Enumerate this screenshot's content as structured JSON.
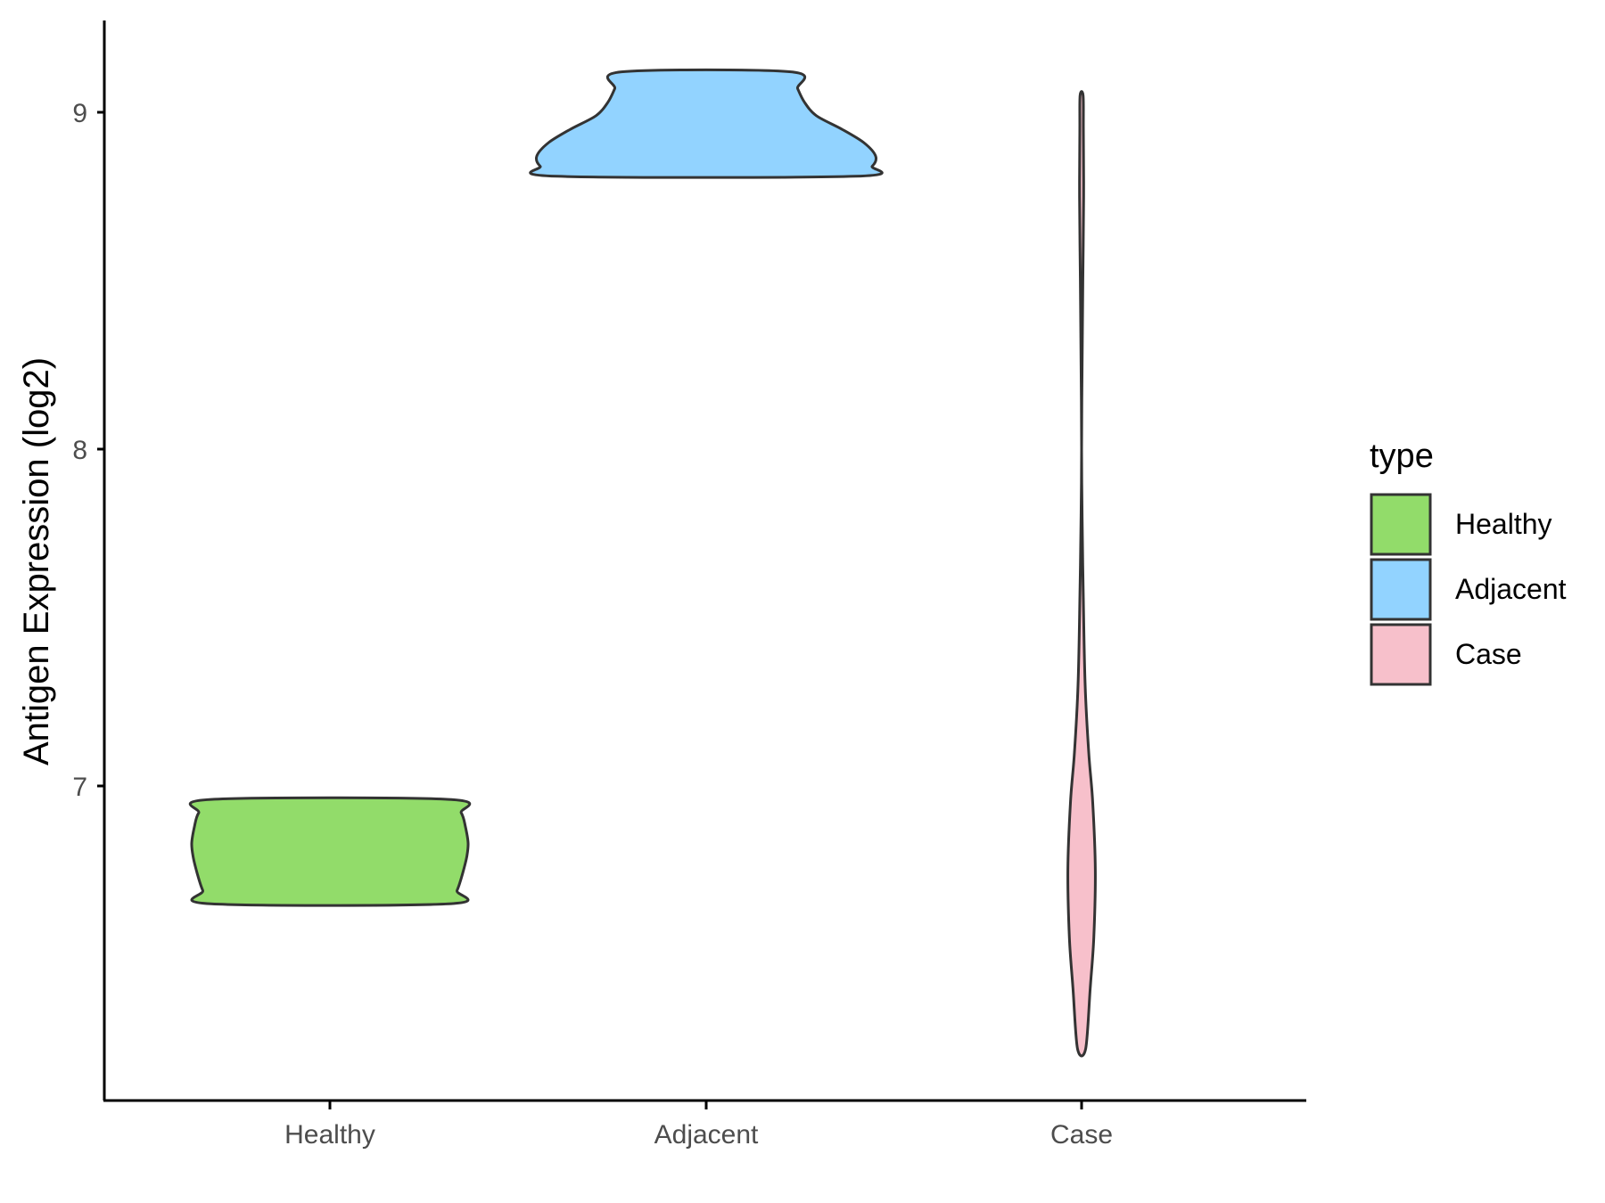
{
  "chart_data": {
    "type": "violin",
    "title": "",
    "xlabel": "",
    "ylabel": "Antigen Expression (log2)",
    "categories": [
      "Healthy",
      "Adjacent",
      "Case"
    ],
    "y_ticks": [
      7,
      8,
      9
    ],
    "ylim": [
      6.08,
      9.28
    ],
    "grid": false,
    "legend": {
      "title": "type",
      "position": "right",
      "entries": [
        "Healthy",
        "Adjacent",
        "Case"
      ]
    },
    "colors": {
      "Healthy": "#92DC6A",
      "Adjacent": "#92D3FF",
      "Case": "#F7C0CB",
      "outline": "#333333"
    },
    "series": [
      {
        "category": "Healthy",
        "y_range": [
          6.65,
          6.96
        ],
        "density_profile": [
          [
            6.65,
            0.86
          ],
          [
            6.69,
            0.92
          ],
          [
            6.74,
            0.96
          ],
          [
            6.79,
            0.99
          ],
          [
            6.83,
            1.0
          ],
          [
            6.88,
            0.98
          ],
          [
            6.92,
            0.95
          ],
          [
            6.96,
            0.86
          ]
        ]
      },
      {
        "category": "Adjacent",
        "y_range": [
          8.81,
          9.12
        ],
        "density_profile": [
          [
            8.81,
            0.88
          ],
          [
            8.84,
            0.98
          ],
          [
            8.87,
            1.0
          ],
          [
            8.91,
            0.93
          ],
          [
            8.95,
            0.8
          ],
          [
            8.99,
            0.65
          ],
          [
            9.03,
            0.58
          ],
          [
            9.07,
            0.54
          ],
          [
            9.12,
            0.5
          ]
        ]
      },
      {
        "category": "Case",
        "y_range": [
          6.22,
          9.05
        ],
        "density_profile": [
          [
            6.22,
            0.08
          ],
          [
            6.4,
            0.17
          ],
          [
            6.55,
            0.24
          ],
          [
            6.75,
            0.27
          ],
          [
            6.95,
            0.22
          ],
          [
            7.1,
            0.14
          ],
          [
            7.3,
            0.07
          ],
          [
            7.55,
            0.035
          ],
          [
            7.8,
            0.01
          ],
          [
            8.0,
            0.0
          ],
          [
            8.25,
            0.01
          ],
          [
            8.5,
            0.025
          ],
          [
            8.75,
            0.04
          ],
          [
            8.95,
            0.035
          ],
          [
            9.05,
            0.03
          ]
        ]
      }
    ]
  }
}
